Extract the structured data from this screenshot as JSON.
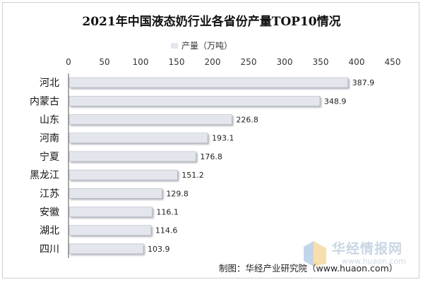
{
  "chart_data": {
    "type": "bar",
    "orientation": "horizontal",
    "title": "2021年中国液态奶行业各省份产量TOP10情况",
    "legend": "产量（万吨）",
    "legend_position": "top",
    "categories": [
      "河北",
      "内蒙古",
      "山东",
      "河南",
      "宁夏",
      "黑龙江",
      "江苏",
      "安徽",
      "湖北",
      "四川"
    ],
    "values": [
      387.9,
      348.9,
      226.8,
      193.1,
      176.8,
      151.2,
      129.8,
      116.1,
      114.6,
      103.9
    ],
    "value_labels": [
      "387.9",
      "348.9",
      "226.8",
      "193.1",
      "176.8",
      "151.2",
      "129.8",
      "116.1",
      "114.6",
      "103.9"
    ],
    "xlim": [
      0,
      450
    ],
    "xticks": [
      "0",
      "50",
      "100",
      "150",
      "200",
      "250",
      "300",
      "350",
      "400",
      "450"
    ],
    "x_axis_position": "top",
    "grid": false,
    "bar_color": "#e4e6ee",
    "bar_shadow_color": "#b7bac4"
  },
  "watermark": {
    "name": "华经情报网",
    "url": "www.huaon.com",
    "icon_colors": [
      "#8fb3d9",
      "#f0c46a"
    ]
  },
  "source_note": "制图：华经产业研究院（www.huaon.com）"
}
